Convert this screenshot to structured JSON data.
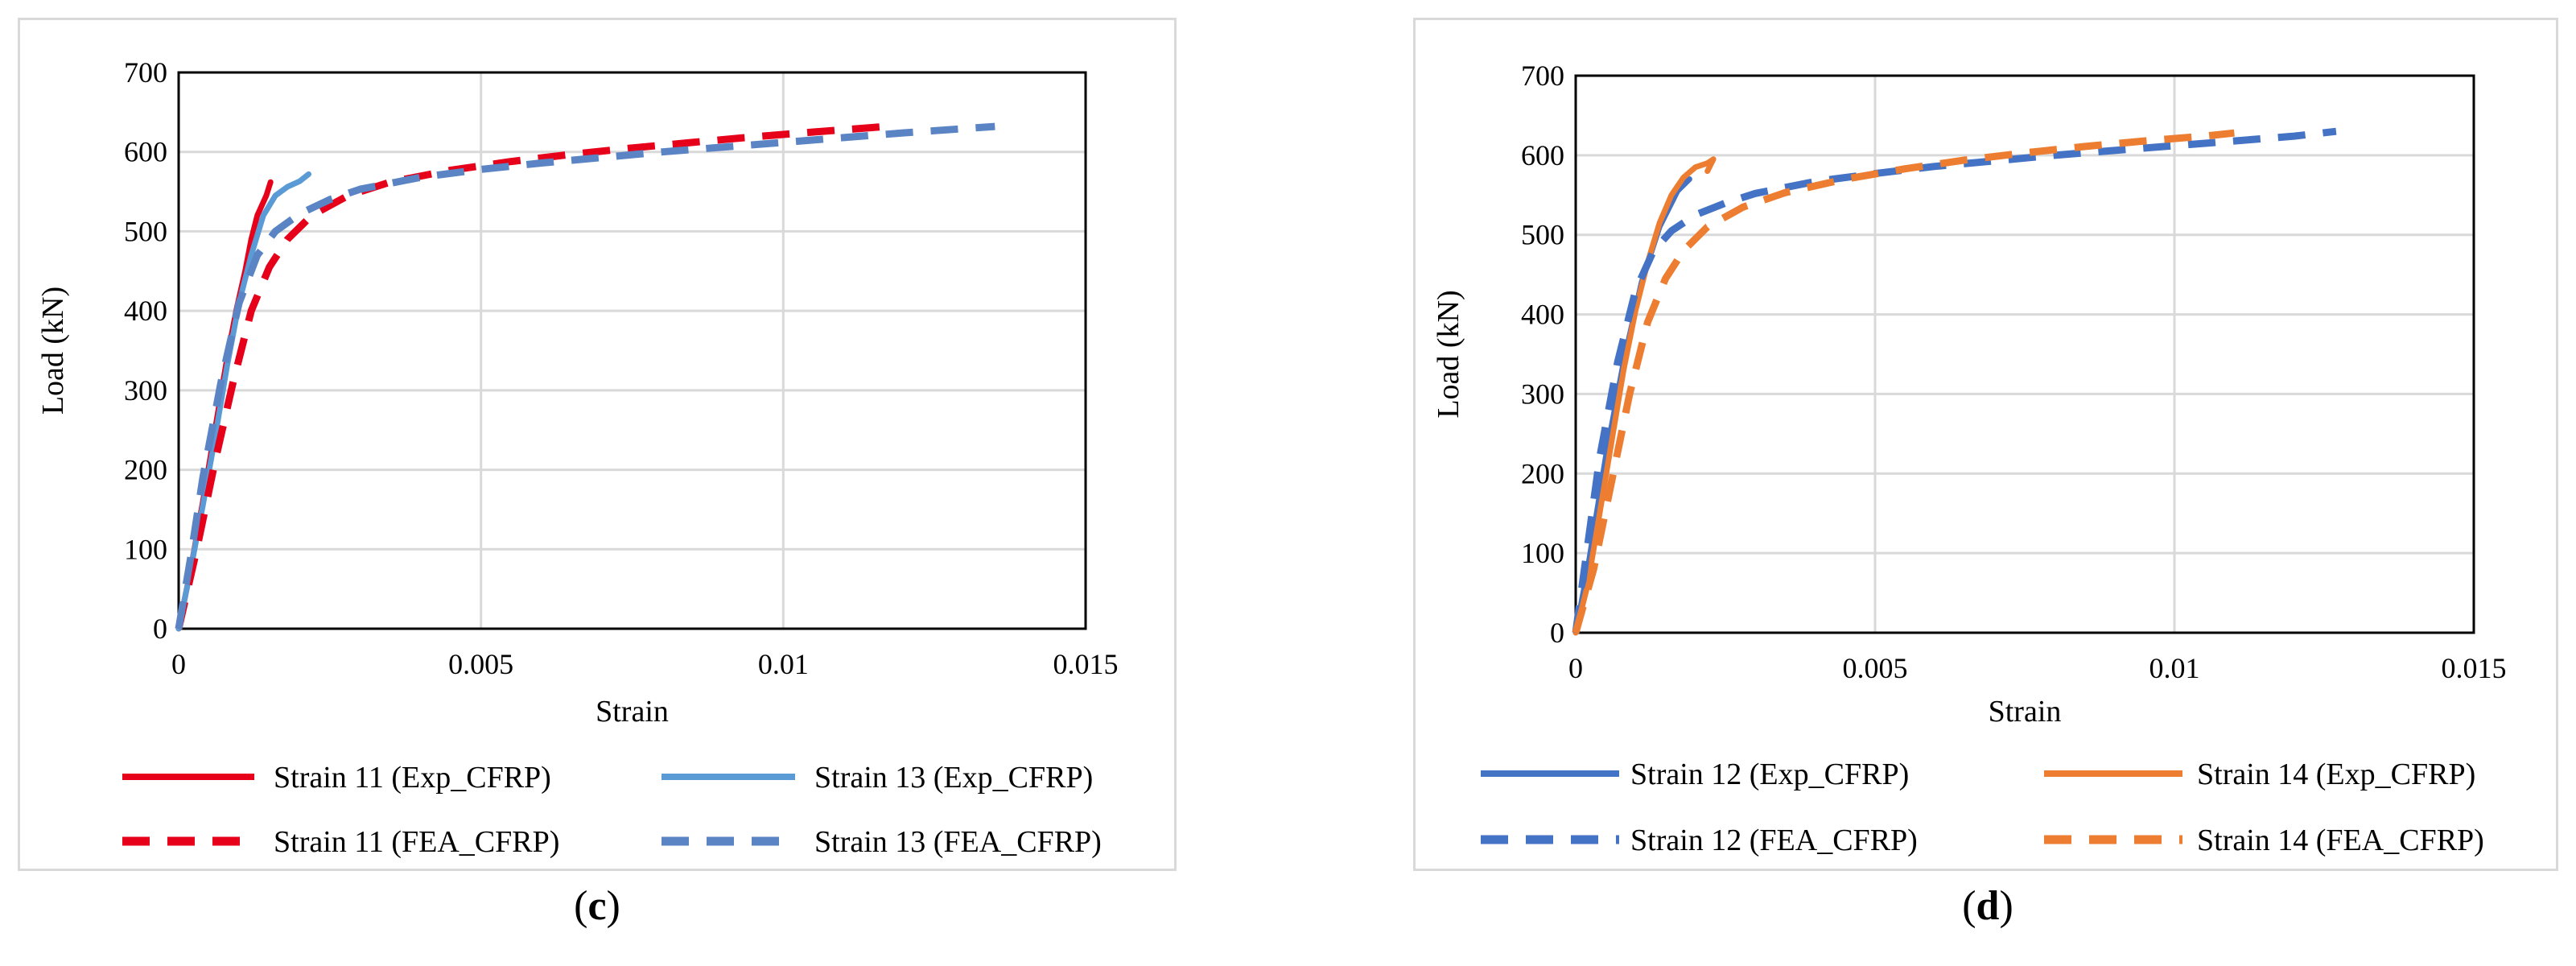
{
  "chart_data": [
    {
      "panel": "c",
      "type": "line",
      "xlabel": "Strain",
      "ylabel": "Load (kN)",
      "xlim": [
        0,
        0.015
      ],
      "ylim": [
        0,
        700
      ],
      "xticks": [
        0,
        0.005,
        0.01,
        0.015
      ],
      "xtick_labels": [
        "0",
        "0.005",
        "0.01",
        "0.015"
      ],
      "yticks": [
        0,
        100,
        200,
        300,
        400,
        500,
        600,
        700
      ],
      "ytick_labels": [
        "0",
        "100",
        "200",
        "300",
        "400",
        "500",
        "600",
        "700"
      ],
      "grid": true,
      "legend_position": "bottom",
      "series": [
        {
          "name": "Strain 11 (Exp_CFRP)",
          "color": "#e6001a",
          "dash": "solid",
          "x": [
            0,
            0.0002,
            0.0004,
            0.0006,
            0.0008,
            0.00095,
            0.0011,
            0.0012,
            0.0013,
            0.00145,
            0.00152
          ],
          "y": [
            0,
            75,
            160,
            250,
            340,
            400,
            450,
            490,
            520,
            545,
            562
          ]
        },
        {
          "name": "Strain 13 (Exp_CFRP)",
          "color": "#5b9bd5",
          "dash": "solid",
          "x": [
            0,
            0.0002,
            0.0004,
            0.0006,
            0.0008,
            0.001,
            0.0012,
            0.0014,
            0.0016,
            0.0018,
            0.002,
            0.00215
          ],
          "y": [
            0,
            75,
            155,
            240,
            330,
            410,
            470,
            520,
            545,
            556,
            563,
            572
          ]
        },
        {
          "name": "Strain 11 (FEA_CFRP)",
          "color": "#e6001a",
          "dash": "dashed",
          "x": [
            0,
            0.0003,
            0.0006,
            0.0009,
            0.0012,
            0.0015,
            0.0018,
            0.0022,
            0.0028,
            0.0035,
            0.0045,
            0.0055,
            0.0065,
            0.0075,
            0.0085,
            0.0095,
            0.0105,
            0.0117
          ],
          "y": [
            0,
            100,
            210,
            310,
            400,
            455,
            490,
            520,
            545,
            562,
            577,
            588,
            597,
            605,
            612,
            619,
            625,
            632
          ]
        },
        {
          "name": "Strain 13 (FEA_CFRP)",
          "color": "#5b84c4",
          "dash": "dashed",
          "x": [
            0,
            0.0002,
            0.0004,
            0.0007,
            0.001,
            0.0013,
            0.0016,
            0.002,
            0.0025,
            0.003,
            0.004,
            0.005,
            0.006,
            0.007,
            0.008,
            0.009,
            0.01,
            0.011,
            0.012,
            0.0135
          ],
          "y": [
            0,
            90,
            190,
            310,
            410,
            470,
            500,
            522,
            540,
            553,
            568,
            578,
            586,
            593,
            600,
            606,
            612,
            618,
            624,
            632
          ]
        }
      ]
    },
    {
      "panel": "d",
      "type": "line",
      "xlabel": "Strain",
      "ylabel": "Load (kN)",
      "xlim": [
        0,
        0.015
      ],
      "ylim": [
        0,
        700
      ],
      "xticks": [
        0,
        0.005,
        0.01,
        0.015
      ],
      "xtick_labels": [
        "0",
        "0.005",
        "0.01",
        "0.015"
      ],
      "yticks": [
        0,
        100,
        200,
        300,
        400,
        500,
        600,
        700
      ],
      "ytick_labels": [
        "0",
        "100",
        "200",
        "300",
        "400",
        "500",
        "600",
        "700"
      ],
      "grid": true,
      "legend_position": "bottom",
      "series": [
        {
          "name": "Strain 12 (Exp_CFRP)",
          "color": "#4472c4",
          "dash": "solid",
          "x": [
            0,
            0.0002,
            0.0005,
            0.0008,
            0.0011,
            0.0014,
            0.0017,
            0.0019
          ],
          "y": [
            0,
            80,
            220,
            340,
            440,
            510,
            555,
            570
          ]
        },
        {
          "name": "Strain 14 (Exp_CFRP)",
          "color": "#ed7d31",
          "dash": "solid",
          "x": [
            0,
            0.0002,
            0.0004,
            0.0006,
            0.0008,
            0.001,
            0.0012,
            0.0014,
            0.0016,
            0.0018,
            0.002,
            0.0022,
            0.0023,
            0.0022
          ],
          "y": [
            0,
            60,
            150,
            240,
            330,
            405,
            465,
            515,
            550,
            572,
            585,
            590,
            595,
            580
          ]
        },
        {
          "name": "Strain 12 (FEA_CFRP)",
          "color": "#4472c4",
          "dash": "dashed",
          "x": [
            0,
            0.0002,
            0.0004,
            0.0007,
            0.001,
            0.0013,
            0.0016,
            0.002,
            0.0025,
            0.003,
            0.004,
            0.005,
            0.006,
            0.007,
            0.008,
            0.009,
            0.01,
            0.011,
            0.012,
            0.0127
          ],
          "y": [
            0,
            110,
            220,
            340,
            430,
            480,
            505,
            525,
            540,
            552,
            567,
            577,
            586,
            593,
            600,
            606,
            612,
            618,
            624,
            630
          ]
        },
        {
          "name": "Strain 14 (FEA_CFRP)",
          "color": "#ed7d31",
          "dash": "dashed",
          "x": [
            0,
            0.0003,
            0.0006,
            0.0009,
            0.0012,
            0.0015,
            0.0018,
            0.0022,
            0.0028,
            0.0035,
            0.0045,
            0.0055,
            0.0065,
            0.0075,
            0.0085,
            0.0095,
            0.0105,
            0.011
          ],
          "y": [
            0,
            80,
            190,
            300,
            390,
            445,
            480,
            510,
            535,
            553,
            570,
            583,
            594,
            603,
            611,
            618,
            624,
            628
          ]
        }
      ]
    }
  ],
  "captions": {
    "c": "c",
    "d": "d"
  }
}
